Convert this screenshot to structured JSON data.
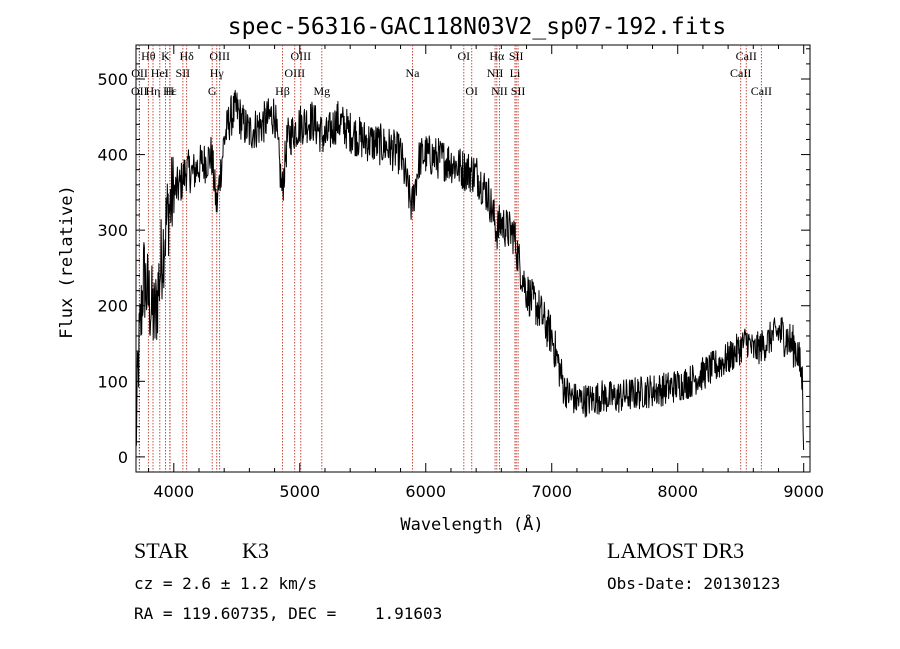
{
  "chart_data": {
    "type": "line",
    "title": "spec-56316-GAC118N03V2_sp07-192.fits",
    "xlabel": "Wavelength (Å)",
    "ylabel": "Flux (relative)",
    "xlim": [
      3700,
      9050
    ],
    "ylim": [
      -20,
      545
    ],
    "xticks": [
      4000,
      5000,
      6000,
      7000,
      8000,
      9000
    ],
    "yticks": [
      0,
      100,
      200,
      300,
      400,
      500
    ],
    "grid": false,
    "series": [
      {
        "name": "flux",
        "color": "#000000",
        "x": [
          3700,
          3720,
          3760,
          3800,
          3850,
          3900,
          3950,
          4000,
          4050,
          4100,
          4150,
          4200,
          4250,
          4300,
          4340,
          4400,
          4450,
          4500,
          4550,
          4600,
          4700,
          4800,
          4860,
          4900,
          5000,
          5100,
          5200,
          5300,
          5400,
          5500,
          5600,
          5700,
          5800,
          5890,
          5950,
          6000,
          6100,
          6200,
          6300,
          6400,
          6500,
          6563,
          6600,
          6650,
          6700,
          6750,
          6800,
          6850,
          6900,
          6950,
          7000,
          7050,
          7100,
          7150,
          7200,
          7300,
          7400,
          7500,
          7600,
          7700,
          7800,
          7900,
          8000,
          8100,
          8200,
          8300,
          8400,
          8500,
          8550,
          8600,
          8650,
          8700,
          8750,
          8800,
          8850,
          8900,
          8950,
          8990,
          9000
        ],
        "values": [
          20,
          130,
          240,
          210,
          180,
          260,
          320,
          350,
          360,
          380,
          375,
          385,
          390,
          400,
          330,
          420,
          450,
          460,
          440,
          430,
          440,
          455,
          350,
          420,
          440,
          445,
          420,
          445,
          430,
          420,
          415,
          410,
          400,
          330,
          395,
          400,
          395,
          390,
          380,
          375,
          345,
          300,
          310,
          300,
          295,
          250,
          220,
          205,
          195,
          175,
          160,
          125,
          90,
          80,
          75,
          75,
          80,
          78,
          82,
          85,
          88,
          90,
          95,
          100,
          110,
          120,
          130,
          145,
          155,
          140,
          145,
          150,
          160,
          165,
          160,
          150,
          140,
          100,
          20
        ],
        "noise": 28
      }
    ],
    "lines": [
      {
        "label": "Hθ",
        "x": 3798,
        "row": 0
      },
      {
        "label": "K",
        "x": 3934,
        "row": 0
      },
      {
        "label": "Hδ",
        "x": 4102,
        "row": 0
      },
      {
        "label": "OIII",
        "x": 4364,
        "row": 0
      },
      {
        "label": "OIII",
        "x": 5008,
        "row": 0
      },
      {
        "label": "OI",
        "x": 6302,
        "row": 0
      },
      {
        "label": "Hα",
        "x": 6564,
        "row": 0
      },
      {
        "label": "SII",
        "x": 6718,
        "row": 0
      },
      {
        "label": "CaII",
        "x": 8544,
        "row": 0
      },
      {
        "label": "OII",
        "x": 3728,
        "row": 1
      },
      {
        "label": "HeI",
        "x": 3889,
        "row": 1
      },
      {
        "label": "SII",
        "x": 4072,
        "row": 1
      },
      {
        "label": "Hγ",
        "x": 4341,
        "row": 1
      },
      {
        "label": "OIII",
        "x": 4960,
        "row": 1
      },
      {
        "label": "Na",
        "x": 5895,
        "row": 1
      },
      {
        "label": "NII",
        "x": 6550,
        "row": 1
      },
      {
        "label": "Li",
        "x": 6708,
        "row": 1
      },
      {
        "label": "CaII",
        "x": 8500,
        "row": 1
      },
      {
        "label": "OII",
        "x": 3726,
        "row": 2
      },
      {
        "label": "Hε",
        "x": 3970,
        "row": 2
      },
      {
        "label": "Hη",
        "x": 3835,
        "row": 2
      },
      {
        "label": "H",
        "x": 3968,
        "row": 2
      },
      {
        "label": "G",
        "x": 4305,
        "row": 2
      },
      {
        "label": "Hβ",
        "x": 4863,
        "row": 2
      },
      {
        "label": "Mg",
        "x": 5175,
        "row": 2
      },
      {
        "label": "OI",
        "x": 6365,
        "row": 2
      },
      {
        "label": "NII",
        "x": 6585,
        "row": 2
      },
      {
        "label": "SII",
        "x": 6733,
        "row": 2
      },
      {
        "label": "CaII",
        "x": 8664,
        "row": 2
      }
    ]
  },
  "info": {
    "object_class": "STAR",
    "subclass": "K3",
    "survey": "LAMOST DR3",
    "cz": "cz = 2.6 ± 1.2 km/s",
    "obs_date": "Obs-Date: 20130123",
    "coords": "RA = 119.60735, DEC =    1.91603"
  }
}
